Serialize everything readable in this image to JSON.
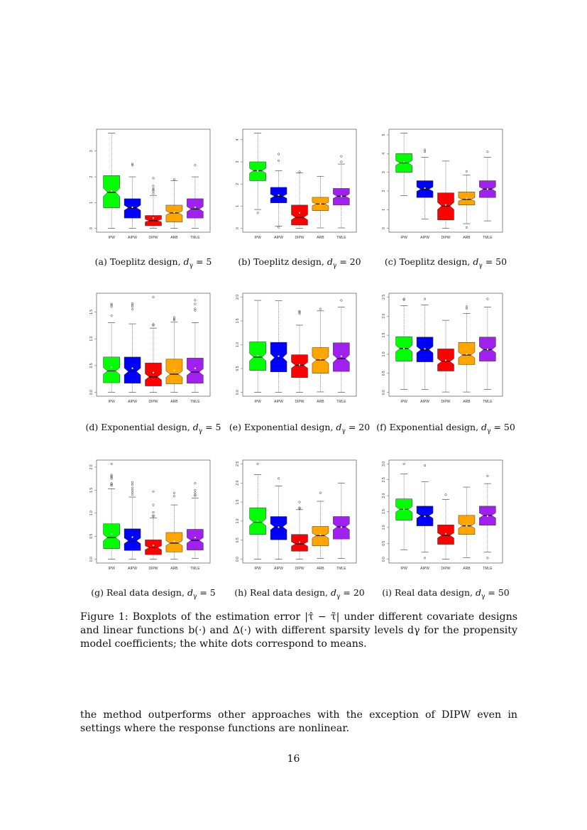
{
  "colors": {
    "IPW": "#00ff00",
    "AIPW": "#0000ff",
    "DIPW": "#ff0000",
    "ARB": "#ffa500",
    "TMLE": "#a020f0"
  },
  "subcaptions": [
    {
      "label": "(a)",
      "text": "Toeplitz design,",
      "var": "d",
      "sub": "γ",
      "eq": "= 5"
    },
    {
      "label": "(b)",
      "text": "Toeplitz design,",
      "var": "d",
      "sub": "γ",
      "eq": "= 20"
    },
    {
      "label": "(c)",
      "text": "Toeplitz design,",
      "var": "d",
      "sub": "γ",
      "eq": "= 50"
    },
    {
      "label": "(d)",
      "text": "Exponential design,",
      "var": "d",
      "sub": "γ",
      "eq": "= 5"
    },
    {
      "label": "(e)",
      "text": "Exponential design,",
      "var": "d",
      "sub": "γ",
      "eq": "= 20"
    },
    {
      "label": "(f)",
      "text": "Exponential design,",
      "var": "d",
      "sub": "γ",
      "eq": "= 50"
    },
    {
      "label": "(g)",
      "text": "Real data design,",
      "var": "d",
      "sub": "γ",
      "eq": "= 5"
    },
    {
      "label": "(h)",
      "text": "Real data design,",
      "var": "d",
      "sub": "γ",
      "eq": "= 20"
    },
    {
      "label": "(i)",
      "text": "Real data design,",
      "var": "d",
      "sub": "γ",
      "eq": "= 50"
    }
  ],
  "figure_caption": "Figure 1: Boxplots of the estimation error |τ̂ − τ̃| under different covariate designs and linear functions b(·) and Δ(·) with different sparsity levels dγ for the propensity model coefficients; the white dots correspond to means.",
  "body_text": "the method outperforms other approaches with the exception of DIPW even in settings where the response functions are nonlinear.",
  "page_number": "16",
  "chart_data": [
    {
      "type": "boxplot",
      "categories": [
        "IPW",
        "AIPW",
        "DIPW",
        "ARB",
        "TMLE"
      ],
      "yticks": [
        "0",
        "1",
        "2",
        "3"
      ],
      "ylim": [
        0,
        3.7
      ],
      "notched": true,
      "boxes": [
        {
          "min": 0,
          "q1": 0.8,
          "median": 1.4,
          "q3": 2.05,
          "max": 3.7,
          "mean": 1.45,
          "outliers": []
        },
        {
          "min": 0,
          "q1": 0.4,
          "median": 0.8,
          "q3": 1.15,
          "max": 2.0,
          "mean": 0.82,
          "outliers": [
            2.45,
            2.5
          ]
        },
        {
          "min": 0,
          "q1": 0.1,
          "median": 0.3,
          "q3": 0.5,
          "max": 1.28,
          "mean": 0.4,
          "outliers": [
            1.35,
            1.45,
            1.5,
            1.55,
            1.65,
            1.95
          ]
        },
        {
          "min": 0,
          "q1": 0.25,
          "median": 0.6,
          "q3": 0.9,
          "max": 1.85,
          "mean": 0.62,
          "outliers": [
            1.9
          ]
        },
        {
          "min": 0,
          "q1": 0.4,
          "median": 0.75,
          "q3": 1.15,
          "max": 2.0,
          "mean": 0.82,
          "outliers": [
            2.45
          ]
        }
      ]
    },
    {
      "type": "boxplot",
      "categories": [
        "IPW",
        "AIPW",
        "DIPW",
        "ARB",
        "TMLE"
      ],
      "yticks": [
        "0",
        "1",
        "2",
        "3",
        "4"
      ],
      "ylim": [
        0,
        4.3
      ],
      "notched": true,
      "boxes": [
        {
          "min": 0.85,
          "q1": 2.15,
          "median": 2.6,
          "q3": 3.0,
          "max": 4.3,
          "mean": 2.6,
          "outliers": [
            0.7
          ]
        },
        {
          "min": 0.1,
          "q1": 1.15,
          "median": 1.45,
          "q3": 1.85,
          "max": 2.6,
          "mean": 1.5,
          "outliers": [
            0.05,
            3.05,
            3.35
          ]
        },
        {
          "min": 0,
          "q1": 0.15,
          "median": 0.5,
          "q3": 1.05,
          "max": 2.5,
          "mean": 0.7,
          "outliers": [
            2.55
          ]
        },
        {
          "min": 0.02,
          "q1": 0.8,
          "median": 1.1,
          "q3": 1.4,
          "max": 2.35,
          "mean": 1.1,
          "outliers": []
        },
        {
          "min": 0.02,
          "q1": 1.05,
          "median": 1.45,
          "q3": 1.8,
          "max": 2.9,
          "mean": 1.45,
          "outliers": [
            3.0,
            3.25
          ]
        }
      ]
    },
    {
      "type": "boxplot",
      "categories": [
        "IPW",
        "AIPW",
        "DIPW",
        "ARB",
        "TMLE"
      ],
      "yticks": [
        "0",
        "1",
        "2",
        "3",
        "4",
        "5"
      ],
      "ylim": [
        0,
        5.1
      ],
      "notched": true,
      "boxes": [
        {
          "min": 1.75,
          "q1": 3.0,
          "median": 3.5,
          "q3": 4.0,
          "max": 5.1,
          "mean": 3.55,
          "outliers": []
        },
        {
          "min": 0.5,
          "q1": 1.65,
          "median": 2.1,
          "q3": 2.55,
          "max": 3.8,
          "mean": 2.15,
          "outliers": [
            4.1,
            4.2
          ]
        },
        {
          "min": 0,
          "q1": 0.45,
          "median": 1.2,
          "q3": 1.9,
          "max": 3.6,
          "mean": 1.25,
          "outliers": []
        },
        {
          "min": 0.25,
          "q1": 1.25,
          "median": 1.55,
          "q3": 1.95,
          "max": 2.85,
          "mean": 1.6,
          "outliers": [
            0.05,
            3.05
          ]
        },
        {
          "min": 0.4,
          "q1": 1.65,
          "median": 2.1,
          "q3": 2.55,
          "max": 3.8,
          "mean": 2.1,
          "outliers": [
            4.1
          ]
        }
      ]
    },
    {
      "type": "boxplot",
      "categories": [
        "IPW",
        "AIPW",
        "DIPW",
        "ARB",
        "TMLE"
      ],
      "yticks": [
        "0.0",
        "0.5",
        "1.0",
        "1.5"
      ],
      "ylim": [
        0,
        1.78
      ],
      "notched": true,
      "boxes": [
        {
          "min": 0,
          "q1": 0.18,
          "median": 0.4,
          "q3": 0.66,
          "max": 1.3,
          "mean": 0.47,
          "outliers": [
            1.43,
            1.6,
            1.63,
            1.65
          ]
        },
        {
          "min": 0,
          "q1": 0.17,
          "median": 0.39,
          "q3": 0.66,
          "max": 1.28,
          "mean": 0.45,
          "outliers": [
            1.55,
            1.6,
            1.63,
            1.66
          ]
        },
        {
          "min": 0,
          "q1": 0.12,
          "median": 0.29,
          "q3": 0.55,
          "max": 1.2,
          "mean": 0.37,
          "outliers": [
            1.25,
            1.27,
            1.78
          ]
        },
        {
          "min": 0,
          "q1": 0.16,
          "median": 0.34,
          "q3": 0.62,
          "max": 1.31,
          "mean": 0.41,
          "outliers": [
            1.35,
            1.37,
            1.4
          ]
        },
        {
          "min": 0,
          "q1": 0.17,
          "median": 0.38,
          "q3": 0.64,
          "max": 1.3,
          "mean": 0.45,
          "outliers": [
            1.53,
            1.56,
            1.65,
            1.72
          ]
        }
      ]
    },
    {
      "type": "boxplot",
      "categories": [
        "IPW",
        "AIPW",
        "DIPW",
        "ARB",
        "TMLE"
      ],
      "yticks": [
        "0.0",
        "0.5",
        "1.0",
        "1.5",
        "2.0"
      ],
      "ylim": [
        0,
        2.0
      ],
      "notched": true,
      "boxes": [
        {
          "min": 0,
          "q1": 0.46,
          "median": 0.74,
          "q3": 1.06,
          "max": 1.93,
          "mean": 0.77,
          "outliers": []
        },
        {
          "min": 0,
          "q1": 0.43,
          "median": 0.73,
          "q3": 1.05,
          "max": 1.92,
          "mean": 0.76,
          "outliers": []
        },
        {
          "min": 0,
          "q1": 0.31,
          "median": 0.57,
          "q3": 0.79,
          "max": 1.41,
          "mean": 0.58,
          "outliers": [
            1.65,
            1.68,
            1.7
          ]
        },
        {
          "min": 0.01,
          "q1": 0.4,
          "median": 0.68,
          "q3": 0.94,
          "max": 1.71,
          "mean": 0.7,
          "outliers": [
            1.75
          ]
        },
        {
          "min": 0,
          "q1": 0.44,
          "median": 0.71,
          "q3": 1.04,
          "max": 1.79,
          "mean": 0.76,
          "outliers": [
            1.93
          ]
        }
      ]
    },
    {
      "type": "boxplot",
      "categories": [
        "IPW",
        "AIPW",
        "DIPW",
        "ARB",
        "TMLE"
      ],
      "yticks": [
        "0.0",
        "0.5",
        "1.0",
        "1.5",
        "2.0",
        "2.5"
      ],
      "ylim": [
        0,
        2.5
      ],
      "notched": true,
      "boxes": [
        {
          "min": 0.08,
          "q1": 0.82,
          "median": 1.15,
          "q3": 1.46,
          "max": 2.27,
          "mean": 1.15,
          "outliers": [
            2.43,
            2.45
          ]
        },
        {
          "min": 0.08,
          "q1": 0.8,
          "median": 1.12,
          "q3": 1.45,
          "max": 2.29,
          "mean": 1.14,
          "outliers": [
            2.45
          ]
        },
        {
          "min": 0.01,
          "q1": 0.56,
          "median": 0.81,
          "q3": 1.14,
          "max": 1.89,
          "mean": 0.84,
          "outliers": []
        },
        {
          "min": 0.01,
          "q1": 0.73,
          "median": 0.98,
          "q3": 1.31,
          "max": 2.07,
          "mean": 1.0,
          "outliers": [
            2.2,
            2.25
          ]
        },
        {
          "min": 0.08,
          "q1": 0.82,
          "median": 1.12,
          "q3": 1.45,
          "max": 2.24,
          "mean": 1.13,
          "outliers": [
            2.45
          ]
        }
      ]
    },
    {
      "type": "boxplot",
      "categories": [
        "IPW",
        "AIPW",
        "DIPW",
        "ARB",
        "TMLE"
      ],
      "yticks": [
        "0.0",
        "0.5",
        "1.0",
        "1.5",
        "2.0"
      ],
      "ylim": [
        0,
        2.07
      ],
      "notched": true,
      "boxes": [
        {
          "min": 0,
          "q1": 0.23,
          "median": 0.47,
          "q3": 0.77,
          "max": 1.53,
          "mean": 0.55,
          "outliers": [
            1.6,
            1.62,
            1.65,
            1.75,
            1.78,
            1.8,
            1.83,
            2.07
          ]
        },
        {
          "min": 0,
          "q1": 0.19,
          "median": 0.4,
          "q3": 0.66,
          "max": 1.35,
          "mean": 0.48,
          "outliers": [
            1.4,
            1.45,
            1.5,
            1.55,
            1.62,
            1.67
          ]
        },
        {
          "min": 0,
          "q1": 0.1,
          "median": 0.25,
          "q3": 0.42,
          "max": 0.9,
          "mean": 0.3,
          "outliers": [
            0.93,
            0.95,
            1.02,
            1.18,
            1.47
          ]
        },
        {
          "min": 0,
          "q1": 0.16,
          "median": 0.35,
          "q3": 0.58,
          "max": 1.18,
          "mean": 0.39,
          "outliers": [
            1.37,
            1.44
          ]
        },
        {
          "min": 0.02,
          "q1": 0.2,
          "median": 0.41,
          "q3": 0.65,
          "max": 1.33,
          "mean": 0.47,
          "outliers": [
            1.38,
            1.4,
            1.45,
            1.5,
            1.65
          ]
        }
      ]
    },
    {
      "type": "boxplot",
      "categories": [
        "IPW",
        "AIPW",
        "DIPW",
        "ARB",
        "TMLE"
      ],
      "yticks": [
        "0.0",
        "0.5",
        "1.0",
        "1.5",
        "2.0",
        "2.5"
      ],
      "ylim": [
        0,
        2.5
      ],
      "notched": true,
      "boxes": [
        {
          "min": 0,
          "q1": 0.65,
          "median": 0.97,
          "q3": 1.35,
          "max": 2.22,
          "mean": 1.0,
          "outliers": [
            2.5
          ]
        },
        {
          "min": 0,
          "q1": 0.51,
          "median": 0.85,
          "q3": 1.12,
          "max": 1.92,
          "mean": 0.84,
          "outliers": [
            2.12
          ]
        },
        {
          "min": 0,
          "q1": 0.21,
          "median": 0.4,
          "q3": 0.65,
          "max": 1.3,
          "mean": 0.45,
          "outliers": [
            1.33,
            1.35,
            1.5
          ]
        },
        {
          "min": 0.02,
          "q1": 0.35,
          "median": 0.62,
          "q3": 0.86,
          "max": 1.52,
          "mean": 0.64,
          "outliers": [
            1.74
          ]
        },
        {
          "min": 0.02,
          "q1": 0.53,
          "median": 0.85,
          "q3": 1.12,
          "max": 2.0,
          "mean": 0.84,
          "outliers": []
        }
      ]
    },
    {
      "type": "boxplot",
      "categories": [
        "IPW",
        "AIPW",
        "DIPW",
        "ARB",
        "TMLE"
      ],
      "yticks": [
        "0.0",
        "0.5",
        "1.0",
        "1.5",
        "2.0",
        "2.5",
        "3.0"
      ],
      "ylim": [
        0,
        3.0
      ],
      "notched": true,
      "boxes": [
        {
          "min": 0.3,
          "q1": 1.23,
          "median": 1.57,
          "q3": 1.9,
          "max": 2.68,
          "mean": 1.57,
          "outliers": [
            3.0
          ]
        },
        {
          "min": 0.22,
          "q1": 1.05,
          "median": 1.37,
          "q3": 1.67,
          "max": 2.44,
          "mean": 1.35,
          "outliers": [
            0.04,
            2.95
          ]
        },
        {
          "min": 0,
          "q1": 0.47,
          "median": 0.75,
          "q3": 1.08,
          "max": 1.88,
          "mean": 0.8,
          "outliers": [
            2.03
          ]
        },
        {
          "min": 0.05,
          "q1": 0.78,
          "median": 1.05,
          "q3": 1.38,
          "max": 2.27,
          "mean": 1.05,
          "outliers": []
        },
        {
          "min": 0.22,
          "q1": 1.07,
          "median": 1.38,
          "q3": 1.67,
          "max": 2.38,
          "mean": 1.36,
          "outliers": [
            0.04,
            2.62
          ]
        }
      ]
    }
  ]
}
